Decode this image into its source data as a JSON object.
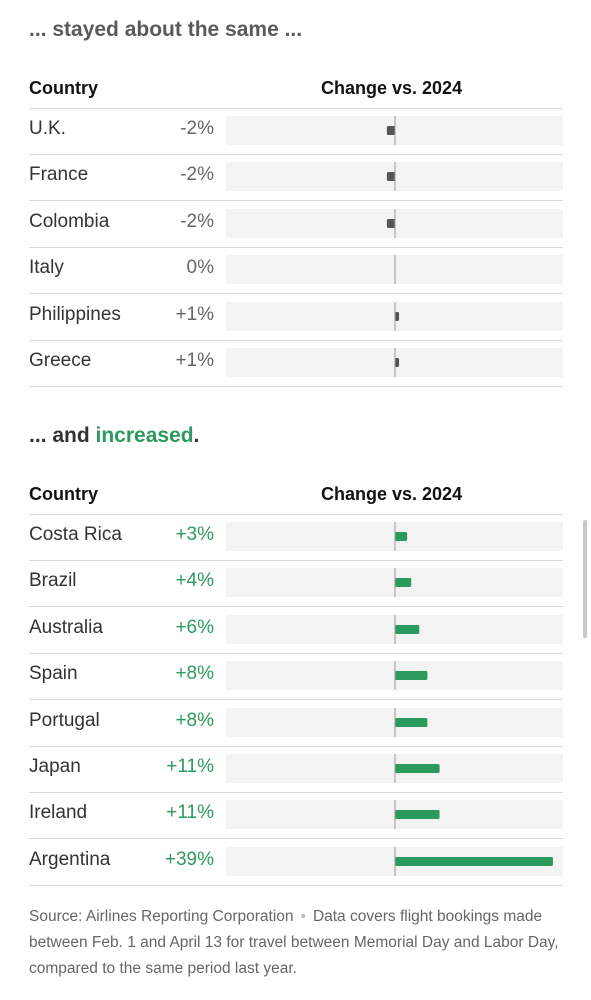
{
  "sections": [
    {
      "heading_parts": [
        {
          "text": "... stayed about the same ...",
          "style": "muted"
        }
      ],
      "header": {
        "country": "Country",
        "change": "Change vs. 2024"
      }
    },
    {
      "heading_parts": [
        {
          "text": "... and ",
          "style": "dark"
        },
        {
          "text": "increased",
          "style": "accent"
        },
        {
          "text": ".",
          "style": "dark"
        }
      ],
      "header": {
        "country": "Country",
        "change": "Change vs. 2024"
      }
    }
  ],
  "chart_data": [
    {
      "type": "bar",
      "categories": [
        "U.K.",
        "France",
        "Colombia",
        "Italy",
        "Philippines",
        "Greece"
      ],
      "values": [
        -2,
        -2,
        -2,
        0,
        1,
        1
      ],
      "labels": [
        "-2%",
        "-2%",
        "-2%",
        "0%",
        "+1%",
        "+1%"
      ],
      "xlabel": "Change vs. 2024",
      "xlim": [
        -40,
        40
      ],
      "bar_color": "#555555",
      "label_color": "#666666"
    },
    {
      "type": "bar",
      "categories": [
        "Costa Rica",
        "Brazil",
        "Australia",
        "Spain",
        "Portugal",
        "Japan",
        "Ireland",
        "Argentina"
      ],
      "values": [
        3,
        4,
        6,
        8,
        8,
        11,
        11,
        39
      ],
      "labels": [
        "+3%",
        "+4%",
        "+6%",
        "+8%",
        "+8%",
        "+11%",
        "+11%",
        "+39%"
      ],
      "xlabel": "Change vs. 2024",
      "xlim": [
        -40,
        40
      ],
      "bar_color": "#2c9a5c",
      "label_color": "#2c9a5c"
    }
  ],
  "footer": {
    "source": "Source: Airlines Reporting Corporation",
    "separator": "•",
    "note": "Data covers flight bookings made between Feb. 1 and April 13 for travel between Memorial Day and Labor Day, compared to the same period last year."
  },
  "colors": {
    "accent": "#2c9a5c",
    "track": "#f3f3f3",
    "zero_line": "#999999"
  }
}
